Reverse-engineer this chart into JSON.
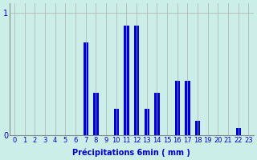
{
  "title": "",
  "xlabel": "Précipitations 6min ( mm )",
  "ylabel": "",
  "background_color": "#cceee8",
  "bar_color": "#0000dd",
  "grid_color": "#b0b0b0",
  "xlim": [
    -0.5,
    23.5
  ],
  "ylim": [
    0,
    1.08
  ],
  "yticks": [
    0,
    1
  ],
  "ytick_labels": [
    "0",
    "1"
  ],
  "xticks": [
    0,
    1,
    2,
    3,
    4,
    5,
    6,
    7,
    8,
    9,
    10,
    11,
    12,
    13,
    14,
    15,
    16,
    17,
    18,
    19,
    20,
    21,
    22,
    23
  ],
  "bar_data": [
    0.0,
    0.0,
    0.0,
    0.0,
    0.0,
    0.0,
    0.0,
    0.76,
    0.35,
    0.0,
    0.22,
    0.9,
    0.9,
    0.22,
    0.35,
    0.0,
    0.45,
    0.45,
    0.12,
    0.0,
    0.0,
    0.0,
    0.06,
    0.0
  ],
  "bar_width": 0.5,
  "xlabel_fontsize": 7,
  "tick_fontsize": 6,
  "xlabel_color": "#0000cc",
  "tick_color": "#0000cc"
}
